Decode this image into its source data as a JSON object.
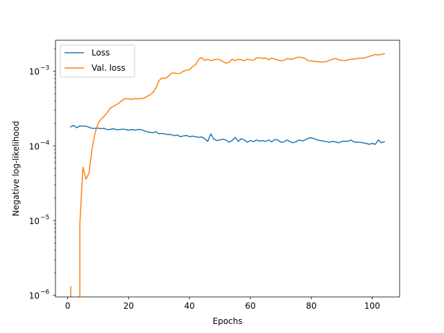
{
  "chart_data": {
    "type": "line",
    "title": "",
    "xlabel": "Epochs",
    "ylabel": "Negative log-likelihood",
    "yscale": "log",
    "xlim": [
      -4,
      109
    ],
    "ylim": [
      9.5e-07,
      0.0026
    ],
    "x_ticks": [
      0,
      20,
      40,
      60,
      80,
      100
    ],
    "y_ticks": [
      {
        "value": 1e-06,
        "mantissa": "10",
        "exponent": "−6"
      },
      {
        "value": 1e-05,
        "mantissa": "10",
        "exponent": "−5"
      },
      {
        "value": 0.0001,
        "mantissa": "10",
        "exponent": "−4"
      },
      {
        "value": 0.001,
        "mantissa": "10",
        "exponent": "−3"
      }
    ],
    "legend_position": "upper-left",
    "grid": false,
    "series": [
      {
        "name": "Loss",
        "color": "#1f77b4",
        "points": [
          [
            1,
            0.00018
          ],
          [
            2,
            0.000188
          ],
          [
            3,
            0.000175
          ],
          [
            4,
            0.000185
          ],
          [
            5,
            0.000184
          ],
          [
            6,
            0.000183
          ],
          [
            7,
            0.000178
          ],
          [
            8,
            0.000172
          ],
          [
            9,
            0.000172
          ],
          [
            10,
            0.000173
          ],
          [
            11,
            0.00017
          ],
          [
            12,
            0.000172
          ],
          [
            13,
            0.000165
          ],
          [
            14,
            0.000167
          ],
          [
            15,
            0.00017
          ],
          [
            16,
            0.000165
          ],
          [
            17,
            0.000165
          ],
          [
            18,
            0.000168
          ],
          [
            19,
            0.000166
          ],
          [
            20,
            0.000162
          ],
          [
            21,
            0.000166
          ],
          [
            22,
            0.000163
          ],
          [
            23,
            0.000166
          ],
          [
            24,
            0.000166
          ],
          [
            25,
            0.00016
          ],
          [
            26,
            0.000155
          ],
          [
            27,
            0.000152
          ],
          [
            28,
            0.00015
          ],
          [
            29,
            0.000155
          ],
          [
            30,
            0.000145
          ],
          [
            31,
            0.000147
          ],
          [
            32,
            0.000144
          ],
          [
            33,
            0.000142
          ],
          [
            34,
            0.000142
          ],
          [
            35,
            0.000137
          ],
          [
            36,
            0.00014
          ],
          [
            37,
            0.000133
          ],
          [
            38,
            0.000136
          ],
          [
            39,
            0.000138
          ],
          [
            40,
            0.000133
          ],
          [
            41,
            0.000135
          ],
          [
            42,
            0.000133
          ],
          [
            43,
            0.00013
          ],
          [
            44,
            0.000132
          ],
          [
            45,
            0.000125
          ],
          [
            46,
            0.000115
          ],
          [
            47,
            0.000145
          ],
          [
            48,
            0.000123
          ],
          [
            49,
            0.000118
          ],
          [
            50,
            0.00012
          ],
          [
            51,
            0.000123
          ],
          [
            52,
            0.00012
          ],
          [
            53,
            0.000112
          ],
          [
            54,
            0.000118
          ],
          [
            55,
            0.00013
          ],
          [
            56,
            0.000115
          ],
          [
            57,
            0.000125
          ],
          [
            58,
            0.00012
          ],
          [
            59,
            0.000112
          ],
          [
            60,
            0.000118
          ],
          [
            61,
            0.000114
          ],
          [
            62,
            0.00012
          ],
          [
            63,
            0.000116
          ],
          [
            64,
            0.000118
          ],
          [
            65,
            0.000115
          ],
          [
            66,
            0.00012
          ],
          [
            67,
            0.000113
          ],
          [
            68,
            0.000122
          ],
          [
            69,
            0.00012
          ],
          [
            70,
            0.000112
          ],
          [
            71,
            0.000113
          ],
          [
            72,
            0.00012
          ],
          [
            73,
            0.000114
          ],
          [
            74,
            0.00011
          ],
          [
            75,
            0.000114
          ],
          [
            76,
            0.00012
          ],
          [
            77,
            0.000117
          ],
          [
            78,
            0.00012
          ],
          [
            79,
            0.000127
          ],
          [
            80,
            0.000128
          ],
          [
            81,
            0.000125
          ],
          [
            82,
            0.00012
          ],
          [
            83,
            0.000118
          ],
          [
            84,
            0.000116
          ],
          [
            85,
            0.000114
          ],
          [
            86,
            0.000112
          ],
          [
            87,
            0.000115
          ],
          [
            88,
            0.000113
          ],
          [
            89,
            0.00011
          ],
          [
            90,
            0.000115
          ],
          [
            91,
            0.000116
          ],
          [
            92,
            0.000115
          ],
          [
            93,
            0.00012
          ],
          [
            94,
            0.000113
          ],
          [
            95,
            0.000112
          ],
          [
            96,
            0.000112
          ],
          [
            97,
            0.00011
          ],
          [
            98,
            0.000108
          ],
          [
            99,
            0.000105
          ],
          [
            100,
            0.000108
          ],
          [
            101,
            0.000105
          ],
          [
            102,
            0.00012
          ],
          [
            103,
            0.00011
          ],
          [
            104,
            0.000114
          ]
        ]
      },
      {
        "name": "Val. loss",
        "color": "#ff7f0e",
        "points": [
          [
            1,
            1.3e-06
          ],
          [
            1,
            3e-07
          ],
          [
            4,
            3e-07
          ],
          [
            4,
            9e-06
          ],
          [
            5,
            5.2e-05
          ],
          [
            6,
            3.6e-05
          ],
          [
            7,
            4.3e-05
          ],
          [
            8,
            9e-05
          ],
          [
            9,
            0.00015
          ],
          [
            10,
            0.0002
          ],
          [
            11,
            0.00023
          ],
          [
            12,
            0.00025
          ],
          [
            13,
            0.00028
          ],
          [
            14,
            0.00032
          ],
          [
            15,
            0.00034
          ],
          [
            16,
            0.000355
          ],
          [
            17,
            0.00038
          ],
          [
            18,
            0.00041
          ],
          [
            19,
            0.00043
          ],
          [
            20,
            0.000425
          ],
          [
            21,
            0.00042
          ],
          [
            22,
            0.00043
          ],
          [
            23,
            0.000425
          ],
          [
            24,
            0.00043
          ],
          [
            25,
            0.000435
          ],
          [
            26,
            0.00046
          ],
          [
            27,
            0.00048
          ],
          [
            28,
            0.00052
          ],
          [
            29,
            0.0006
          ],
          [
            30,
            0.00075
          ],
          [
            31,
            0.00081
          ],
          [
            32,
            0.0008
          ],
          [
            33,
            0.00085
          ],
          [
            34,
            0.00094
          ],
          [
            35,
            0.00095
          ],
          [
            36,
            0.00093
          ],
          [
            37,
            0.00094
          ],
          [
            38,
            0.001
          ],
          [
            39,
            0.00103
          ],
          [
            40,
            0.00105
          ],
          [
            41,
            0.00115
          ],
          [
            42,
            0.00122
          ],
          [
            43,
            0.00145
          ],
          [
            44,
            0.00152
          ],
          [
            45,
            0.0014
          ],
          [
            46,
            0.00145
          ],
          [
            47,
            0.00138
          ],
          [
            48,
            0.00142
          ],
          [
            49,
            0.00145
          ],
          [
            50,
            0.00142
          ],
          [
            51,
            0.00135
          ],
          [
            52,
            0.00128
          ],
          [
            53,
            0.00132
          ],
          [
            54,
            0.00145
          ],
          [
            55,
            0.00138
          ],
          [
            56,
            0.00145
          ],
          [
            57,
            0.00142
          ],
          [
            58,
            0.00138
          ],
          [
            59,
            0.00145
          ],
          [
            60,
            0.00142
          ],
          [
            61,
            0.0014
          ],
          [
            62,
            0.0015
          ],
          [
            63,
            0.00152
          ],
          [
            64,
            0.00148
          ],
          [
            65,
            0.0015
          ],
          [
            66,
            0.00142
          ],
          [
            67,
            0.0015
          ],
          [
            68,
            0.00145
          ],
          [
            69,
            0.00142
          ],
          [
            70,
            0.00138
          ],
          [
            71,
            0.0014
          ],
          [
            72,
            0.00148
          ],
          [
            73,
            0.00145
          ],
          [
            74,
            0.00145
          ],
          [
            75,
            0.00152
          ],
          [
            76,
            0.00155
          ],
          [
            77,
            0.00152
          ],
          [
            78,
            0.00148
          ],
          [
            79,
            0.00138
          ],
          [
            80,
            0.00138
          ],
          [
            81,
            0.00135
          ],
          [
            82,
            0.00135
          ],
          [
            83,
            0.00133
          ],
          [
            84,
            0.00133
          ],
          [
            85,
            0.00135
          ],
          [
            86,
            0.0014
          ],
          [
            87,
            0.00145
          ],
          [
            88,
            0.00148
          ],
          [
            89,
            0.00142
          ],
          [
            90,
            0.0014
          ],
          [
            91,
            0.00138
          ],
          [
            92,
            0.00142
          ],
          [
            93,
            0.00145
          ],
          [
            94,
            0.00145
          ],
          [
            95,
            0.00148
          ],
          [
            96,
            0.0015
          ],
          [
            97,
            0.0015
          ],
          [
            98,
            0.00153
          ],
          [
            99,
            0.00158
          ],
          [
            100,
            0.00162
          ],
          [
            101,
            0.00168
          ],
          [
            102,
            0.00165
          ],
          [
            103,
            0.00168
          ],
          [
            104,
            0.00172
          ]
        ]
      }
    ]
  }
}
